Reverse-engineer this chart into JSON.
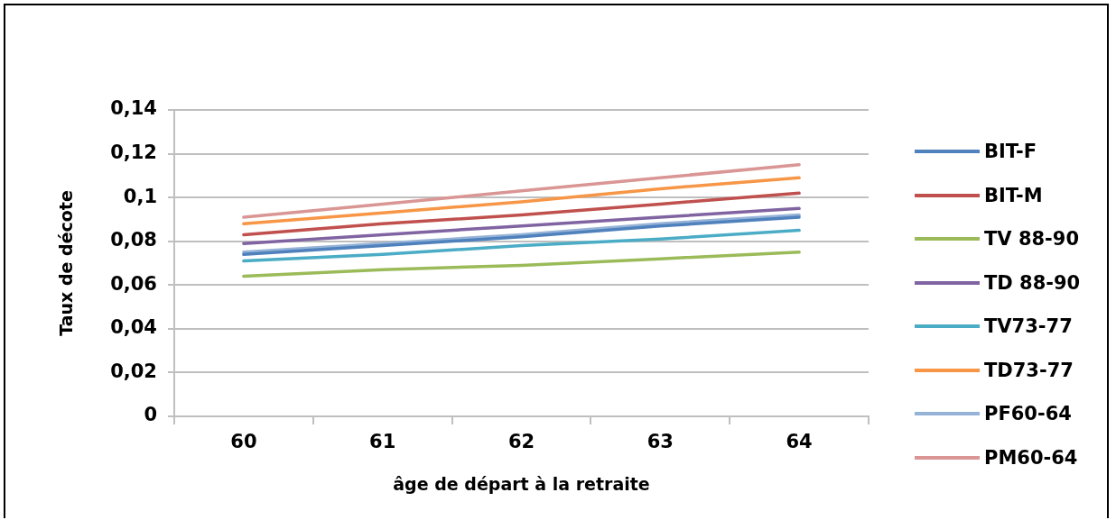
{
  "chart_data": {
    "type": "line",
    "xlabel": "âge de départ à la retraite",
    "ylabel": "Taux de décote",
    "categories": [
      "60",
      "61",
      "62",
      "63",
      "64"
    ],
    "ylim": [
      0,
      0.14
    ],
    "yticks": [
      0,
      {
        "value": 0.02,
        "label": "0,02"
      },
      {
        "value": 0.04,
        "label": "0,04"
      },
      {
        "value": 0.06,
        "label": "0,06"
      },
      {
        "value": 0.08,
        "label": "0,08"
      },
      {
        "value": 0.1,
        "label": "0,1"
      },
      {
        "value": 0.12,
        "label": "0,12"
      },
      {
        "value": 0.14,
        "label": "0,14"
      }
    ],
    "grid": "y",
    "legend": "right",
    "marker": "none",
    "line_style": "solid",
    "series": [
      {
        "name": "BIT-F",
        "color": "#4f81bd",
        "values": [
          0.074,
          0.078,
          0.082,
          0.087,
          0.091
        ]
      },
      {
        "name": "BIT-M",
        "color": "#c0504d",
        "values": [
          0.083,
          0.088,
          0.092,
          0.097,
          0.102
        ]
      },
      {
        "name": "TV 88-90",
        "color": "#9bbb59",
        "values": [
          0.064,
          0.067,
          0.069,
          0.072,
          0.075
        ]
      },
      {
        "name": "TD 88-90",
        "color": "#8064a2",
        "values": [
          0.079,
          0.083,
          0.087,
          0.091,
          0.095
        ]
      },
      {
        "name": "TV73-77",
        "color": "#4bacc6",
        "values": [
          0.071,
          0.074,
          0.078,
          0.081,
          0.085
        ]
      },
      {
        "name": "TD73-77",
        "color": "#f79646",
        "values": [
          0.088,
          0.093,
          0.098,
          0.104,
          0.109
        ]
      },
      {
        "name": "PF60-64",
        "color": "#95b3d7",
        "values": [
          0.075,
          0.079,
          0.083,
          0.088,
          0.092
        ]
      },
      {
        "name": "PM60-64",
        "color": "#d99694",
        "values": [
          0.091,
          0.097,
          0.103,
          0.109,
          0.115
        ]
      }
    ]
  }
}
